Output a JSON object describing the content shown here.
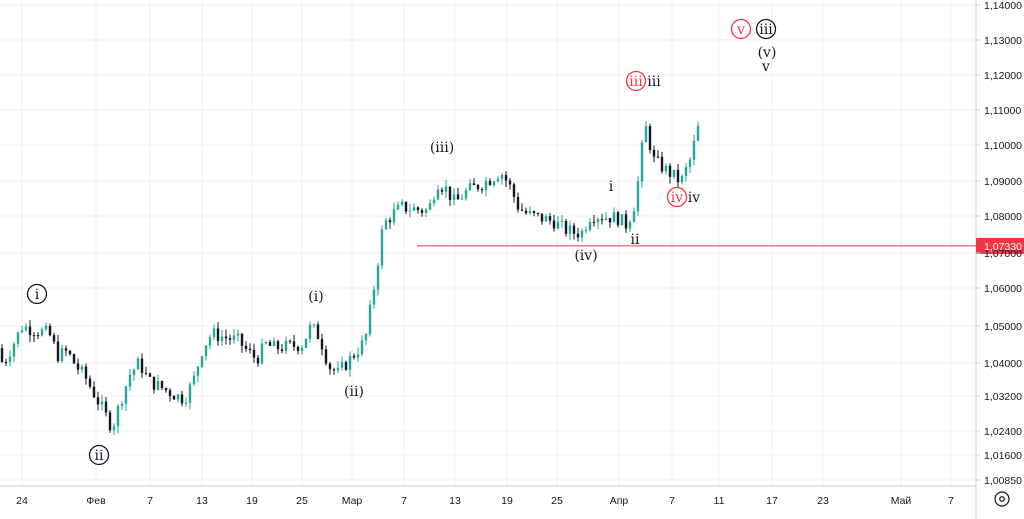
{
  "chart_data": {
    "type": "candlestick",
    "instrument_hint": "",
    "y_axis": {
      "ticks": [
        "1,14000",
        "1,13000",
        "1,12000",
        "1,11000",
        "1,10000",
        "1,09000",
        "1,08000",
        "1,07000",
        "1,06000",
        "1,05000",
        "1,04000",
        "1,03200",
        "1,02400",
        "1,01600",
        "1,00850"
      ],
      "ylim": [
        1.0085,
        1.14
      ],
      "position": "right"
    },
    "x_axis": {
      "ticks": [
        "24",
        "Фев",
        "7",
        "13",
        "19",
        "25",
        "Мар",
        "7",
        "13",
        "19",
        "25",
        "Апр",
        "7",
        "11",
        "17",
        "23",
        "Май",
        "7"
      ]
    },
    "horizontal_line": {
      "value": 1.0733,
      "label": "1,07330",
      "color": "#f23645"
    },
    "close_path": [
      [
        "2025-01-20",
        1.045
      ],
      [
        "2025-01-21",
        1.042
      ],
      [
        "2025-01-22",
        1.041
      ],
      [
        "2025-01-23",
        1.046
      ],
      [
        "2025-01-24",
        1.051
      ],
      [
        "2025-01-27",
        1.049
      ],
      [
        "2025-01-28",
        1.043
      ],
      [
        "2025-01-29",
        1.044
      ],
      [
        "2025-01-30",
        1.04
      ],
      [
        "2025-01-31",
        1.037
      ],
      [
        "2025-02-03",
        1.023
      ],
      [
        "2025-02-04",
        1.031
      ],
      [
        "2025-02-05",
        1.038
      ],
      [
        "2025-02-06",
        1.041
      ],
      [
        "2025-02-07",
        1.036
      ],
      [
        "2025-02-10",
        1.032
      ],
      [
        "2025-02-11",
        1.031
      ],
      [
        "2025-02-12",
        1.036
      ],
      [
        "2025-02-13",
        1.045
      ],
      [
        "2025-02-14",
        1.049
      ],
      [
        "2025-02-17",
        1.047
      ],
      [
        "2025-02-18",
        1.044
      ],
      [
        "2025-02-19",
        1.042
      ],
      [
        "2025-02-20",
        1.046
      ],
      [
        "2025-02-21",
        1.045
      ],
      [
        "2025-02-24",
        1.046
      ],
      [
        "2025-02-25",
        1.051
      ],
      [
        "2025-02-26",
        1.048
      ],
      [
        "2025-02-27",
        1.04
      ],
      [
        "2025-02-28",
        1.038
      ],
      [
        "2025-03-03",
        1.047
      ],
      [
        "2025-03-04",
        1.062
      ],
      [
        "2025-03-05",
        1.079
      ],
      [
        "2025-03-06",
        1.082
      ],
      [
        "2025-03-07",
        1.084
      ],
      [
        "2025-03-10",
        1.083
      ],
      [
        "2025-03-11",
        1.091
      ],
      [
        "2025-03-12",
        1.089
      ],
      [
        "2025-03-13",
        1.085
      ],
      [
        "2025-03-14",
        1.088
      ],
      [
        "2025-03-17",
        1.092
      ],
      [
        "2025-03-18",
        1.094
      ],
      [
        "2025-03-19",
        1.09
      ],
      [
        "2025-03-20",
        1.084
      ],
      [
        "2025-03-21",
        1.082
      ],
      [
        "2025-03-24",
        1.08
      ],
      [
        "2025-03-25",
        1.078
      ],
      [
        "2025-03-26",
        1.077
      ],
      [
        "2025-03-27",
        1.077
      ],
      [
        "2025-03-28",
        1.082
      ],
      [
        "2025-03-31",
        1.081
      ],
      [
        "2025-04-01",
        1.079
      ],
      [
        "2025-04-02",
        1.086
      ],
      [
        "2025-04-03",
        1.107
      ],
      [
        "2025-04-04",
        1.097
      ],
      [
        "2025-04-07",
        1.091
      ],
      [
        "2025-04-08",
        1.097
      ],
      [
        "2025-04-09",
        1.107
      ]
    ],
    "wave_labels": [
      {
        "text": "i",
        "date": "2025-01-24",
        "value": 1.06,
        "style": "circle-black"
      },
      {
        "text": "ii",
        "date": "2025-02-03",
        "value": 1.0165,
        "style": "circle-black"
      },
      {
        "text": "(i)",
        "date": "2025-02-27",
        "value": 1.058,
        "style": "plain"
      },
      {
        "text": "(ii)",
        "date": "2025-03-03",
        "value": 1.034,
        "style": "plain"
      },
      {
        "text": "(iii)",
        "date": "2025-03-13",
        "value": 1.1,
        "style": "plain"
      },
      {
        "text": "(iv)",
        "date": "2025-03-25",
        "value": 1.07,
        "style": "plain"
      },
      {
        "text": "i",
        "date": "2025-03-26",
        "value": 1.087,
        "style": "plain"
      },
      {
        "text": "ii",
        "date": "2025-04-02",
        "value": 1.0765,
        "style": "plain"
      },
      {
        "text": "iii",
        "date": "2025-04-01",
        "value": 1.1185,
        "style": "circle-red"
      },
      {
        "text": "iii",
        "date": "2025-04-02",
        "value": 1.1185,
        "style": "plain"
      },
      {
        "text": "iv",
        "date": "2025-04-03",
        "value": 1.086,
        "style": "circle-red"
      },
      {
        "text": "iv",
        "date": "2025-04-04",
        "value": 1.086,
        "style": "plain"
      },
      {
        "text": "v",
        "date": "2025-04-08",
        "value": 1.132,
        "style": "circle-red"
      },
      {
        "text": "iii",
        "date": "2025-04-09",
        "value": 1.1325,
        "style": "circle-black"
      },
      {
        "text": "(v)",
        "date": "2025-04-10",
        "value": 1.1245,
        "style": "plain"
      },
      {
        "text": "v",
        "date": "2025-04-10",
        "value": 1.121,
        "style": "plain"
      }
    ],
    "colors": {
      "up": "#26a69a",
      "down": "#131722",
      "red_label": "#f23645",
      "black_label": "#131722"
    },
    "grid": true
  },
  "settings_icon": "settings-icon"
}
